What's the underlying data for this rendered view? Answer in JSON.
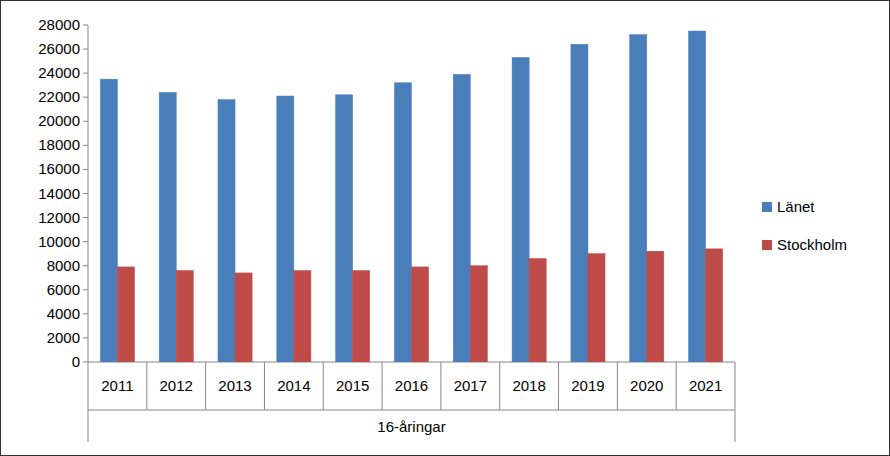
{
  "chart_data": {
    "type": "bar",
    "xlabel": "16-åringar",
    "categories": [
      "2011",
      "2012",
      "2013",
      "2014",
      "2015",
      "2016",
      "2017",
      "2018",
      "2019",
      "2020",
      "2021"
    ],
    "series": [
      {
        "name": "Länet",
        "color": "#4a7ebb",
        "values": [
          23500,
          22400,
          21800,
          22100,
          22200,
          23200,
          23900,
          25300,
          26400,
          27200,
          27500
        ]
      },
      {
        "name": "Stockholm",
        "color": "#be4b48",
        "values": [
          7900,
          7600,
          7400,
          7600,
          7600,
          7900,
          8000,
          8600,
          9000,
          9200,
          9400
        ]
      }
    ],
    "ylim": [
      0,
      28000
    ],
    "yticks": [
      0,
      2000,
      4000,
      6000,
      8000,
      10000,
      12000,
      14000,
      16000,
      18000,
      20000,
      22000,
      24000,
      26000,
      28000
    ],
    "grid": false,
    "legend": "right"
  }
}
